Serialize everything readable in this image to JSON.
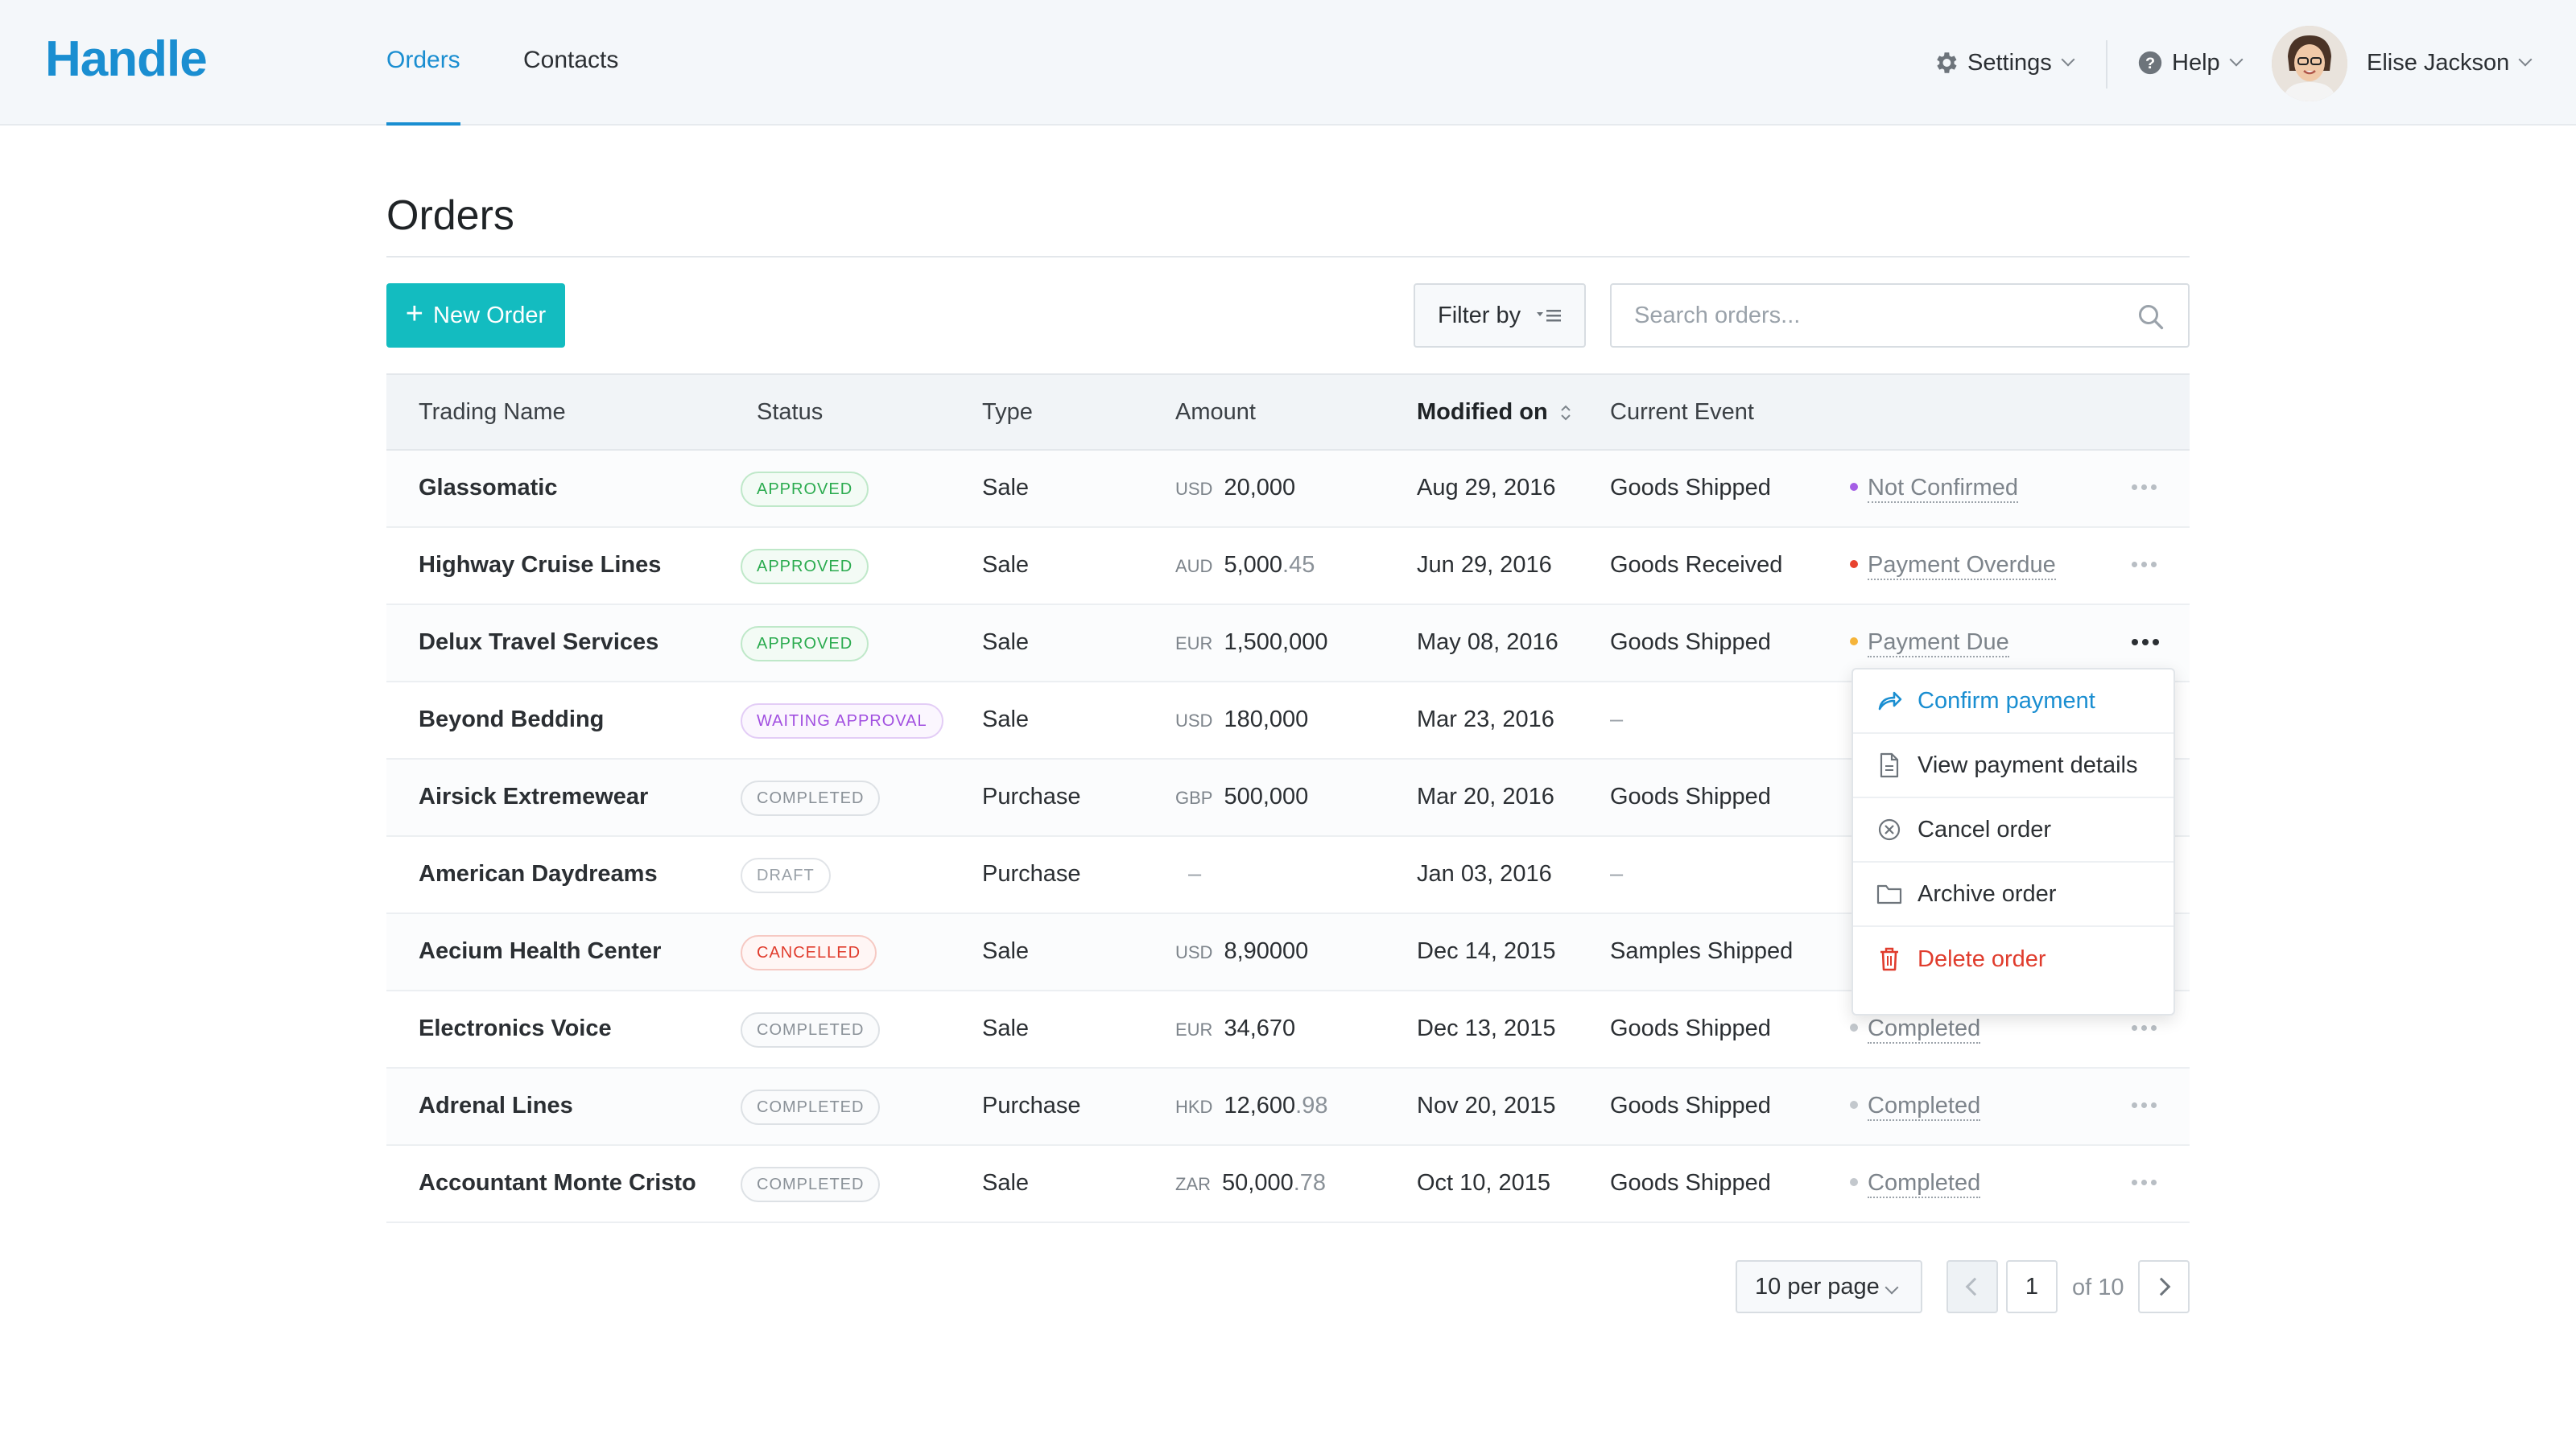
{
  "app": {
    "logo": "Handle"
  },
  "nav": {
    "tabs": [
      {
        "label": "Orders",
        "active": true
      },
      {
        "label": "Contacts",
        "active": false
      }
    ],
    "settings_label": "Settings",
    "help_label": "Help",
    "user_name": "Elise Jackson"
  },
  "page": {
    "title": "Orders"
  },
  "toolbar": {
    "new_order_label": "New Order",
    "filter_label": "Filter by",
    "search_placeholder": "Search orders..."
  },
  "table": {
    "columns": [
      "Trading Name",
      "Status",
      "Type",
      "Amount",
      "Modified on",
      "Current Event"
    ],
    "rows": [
      {
        "name": "Glassomatic",
        "status": "APPROVED",
        "type": "Sale",
        "currency": "USD",
        "amount": "20,000",
        "cents": "",
        "date": "Aug 29, 2016",
        "event": "Goods Shipped",
        "event_status": "Not Confirmed",
        "dot_color": "#a45ee5"
      },
      {
        "name": "Highway Cruise Lines",
        "status": "APPROVED",
        "type": "Sale",
        "currency": "AUD",
        "amount": "5,000",
        "cents": ".45",
        "date": "Jun 29, 2016",
        "event": "Goods Received",
        "event_status": "Payment Overdue",
        "dot_color": "#e8432f"
      },
      {
        "name": "Delux Travel Services",
        "status": "APPROVED",
        "type": "Sale",
        "currency": "EUR",
        "amount": "1,500,000",
        "cents": "",
        "date": "May 08, 2016",
        "event": "Goods Shipped",
        "event_status": "Payment Due",
        "dot_color": "#f5b43a"
      },
      {
        "name": "Beyond Bedding",
        "status": "WAITING APPROVAL",
        "type": "Sale",
        "currency": "USD",
        "amount": "180,000",
        "cents": "",
        "date": "Mar 23, 2016",
        "event": "–",
        "event_status": "",
        "dot_color": ""
      },
      {
        "name": "Airsick Extremewear",
        "status": "COMPLETED",
        "type": "Purchase",
        "currency": "GBP",
        "amount": "500,000",
        "cents": "",
        "date": "Mar 20, 2016",
        "event": "Goods Shipped",
        "event_status": "",
        "dot_color": ""
      },
      {
        "name": "American Daydreams",
        "status": "DRAFT",
        "type": "Purchase",
        "currency": "",
        "amount": "–",
        "cents": "",
        "date": "Jan 03, 2016",
        "event": "–",
        "event_status": "",
        "dot_color": ""
      },
      {
        "name": "Aecium Health Center",
        "status": "CANCELLED",
        "type": "Sale",
        "currency": "USD",
        "amount": "8,90000",
        "cents": "",
        "date": "Dec 14, 2015",
        "event": "Samples Shipped",
        "event_status": "",
        "dot_color": ""
      },
      {
        "name": "Electronics Voice",
        "status": "COMPLETED",
        "type": "Sale",
        "currency": "EUR",
        "amount": "34,670",
        "cents": "",
        "date": "Dec 13, 2015",
        "event": "Goods Shipped",
        "event_status": "Completed",
        "dot_color": "#c3c8cd"
      },
      {
        "name": "Adrenal Lines",
        "status": "COMPLETED",
        "type": "Purchase",
        "currency": "HKD",
        "amount": "12,600",
        "cents": ".98",
        "date": "Nov 20, 2015",
        "event": "Goods Shipped",
        "event_status": "Completed",
        "dot_color": "#c3c8cd"
      },
      {
        "name": "Accountant Monte Cristo",
        "status": "COMPLETED",
        "type": "Sale",
        "currency": "ZAR",
        "amount": "50,000",
        "cents": ".78",
        "date": "Oct 10, 2015",
        "event": "Goods Shipped",
        "event_status": "Completed",
        "dot_color": "#c3c8cd"
      }
    ]
  },
  "status_colors": {
    "APPROVED": {
      "text": "#2bab4f",
      "border": "#bfe8c9",
      "bg": "#f3fbf5"
    },
    "WAITING APPROVAL": {
      "text": "#a14fe0",
      "border": "#e3cdf6",
      "bg": "#fbf6fe"
    },
    "COMPLETED": {
      "text": "#8a9198",
      "border": "#dde1e5",
      "bg": "#fafbfc"
    },
    "DRAFT": {
      "text": "#9aa1a8",
      "border": "#e1e4e8",
      "bg": "#ffffff"
    },
    "CANCELLED": {
      "text": "#e03c2d",
      "border": "#f6c9c3",
      "bg": "#fff6f5"
    }
  },
  "actions_menu": {
    "items": [
      {
        "label": "Confirm payment",
        "icon": "share-arrow-icon",
        "variant": "primary"
      },
      {
        "label": "View payment details",
        "icon": "document-icon",
        "variant": "normal"
      },
      {
        "label": "Cancel order",
        "icon": "cancel-circle-icon",
        "variant": "normal"
      },
      {
        "label": "Archive order",
        "icon": "folder-icon",
        "variant": "normal"
      },
      {
        "label": "Delete order",
        "icon": "trash-icon",
        "variant": "danger"
      }
    ]
  },
  "pagination": {
    "per_page_label": "10 per page",
    "current_page": "1",
    "total_label": "of 10"
  }
}
